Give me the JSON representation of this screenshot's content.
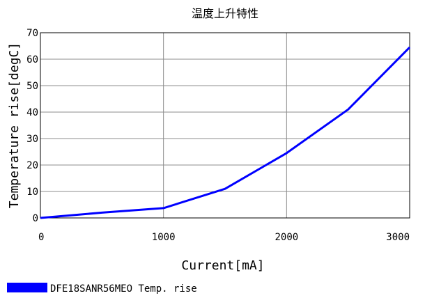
{
  "chart_data": {
    "type": "line",
    "title": "温度上升特性",
    "xlabel": "Current[mA]",
    "ylabel": "Temperature rise[degC]",
    "xlim": [
      0,
      3000
    ],
    "ylim": [
      0,
      70
    ],
    "xticks": [
      0,
      1000,
      2000,
      3000
    ],
    "yticks": [
      0,
      10,
      20,
      30,
      40,
      50,
      60,
      70
    ],
    "grid": true,
    "legend_position": "bottom-left",
    "series": [
      {
        "name": "DFE18SANR56MEO Temp. rise",
        "color": "#0000ff",
        "x": [
          0,
          500,
          1000,
          1500,
          2000,
          2500,
          3000
        ],
        "y": [
          0,
          2,
          3.7,
          11,
          24.5,
          41,
          64.5
        ]
      }
    ]
  }
}
